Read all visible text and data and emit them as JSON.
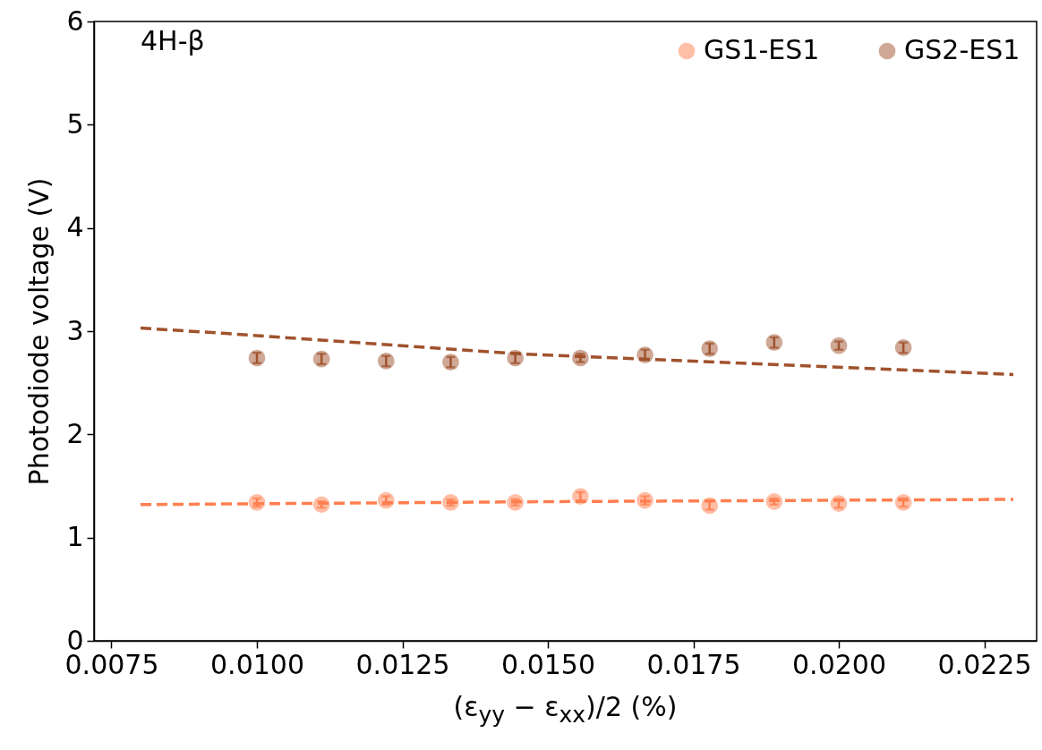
{
  "chart_data": {
    "type": "scatter",
    "xlabel": "(ε$_{yy}$ − ε$_{xx}$)/2 (%)",
    "ylabel": "Photodiode voltage (V)",
    "annotations": [
      "4H-β"
    ],
    "xlim": [
      0.0072,
      0.0234
    ],
    "xticks": [
      0.0075,
      {
        "value": 0.01,
        "label": "0.0100"
      },
      0.0125,
      {
        "value": 0.015,
        "label": "0.0150"
      },
      0.0175,
      {
        "value": 0.02,
        "label": "0.0200"
      },
      0.0225
    ],
    "ylim": [
      0,
      6
    ],
    "yticks": [
      0,
      1,
      2,
      3,
      4,
      5,
      6
    ],
    "grid": false,
    "legend": "top right",
    "series": [
      {
        "name": "GS1-ES1",
        "marker": "circle",
        "color": "#ff7f50",
        "x": [
          0.01,
          0.01111,
          0.01222,
          0.01333,
          0.01444,
          0.01556,
          0.01667,
          0.01778,
          0.01889,
          0.02,
          0.02111
        ],
        "values": [
          1.34,
          1.32,
          1.36,
          1.34,
          1.34,
          1.4,
          1.36,
          1.31,
          1.35,
          1.33,
          1.34
        ],
        "errors": [
          0.04,
          0.03,
          0.04,
          0.03,
          0.03,
          0.04,
          0.04,
          0.04,
          0.03,
          0.04,
          0.04
        ]
      },
      {
        "name": "GS2-ES1",
        "marker": "circle",
        "color": "#a0522d",
        "x": [
          0.01,
          0.01111,
          0.01222,
          0.01333,
          0.01444,
          0.01556,
          0.01667,
          0.01778,
          0.01889,
          0.02,
          0.02111
        ],
        "values": [
          2.74,
          2.73,
          2.71,
          2.7,
          2.74,
          2.74,
          2.77,
          2.83,
          2.89,
          2.86,
          2.84
        ],
        "errors": [
          0.05,
          0.05,
          0.05,
          0.05,
          0.05,
          0.04,
          0.05,
          0.05,
          0.05,
          0.04,
          0.05
        ]
      },
      {
        "type": "line",
        "color": "#ff7f50",
        "line_style": "dashed",
        "x": [
          0.008,
          0.0155,
          0.023
        ],
        "values": [
          1.32,
          1.35,
          1.37
        ]
      },
      {
        "type": "line",
        "color": "#a0522d",
        "line_style": "dashed",
        "x": [
          0.008,
          0.0094,
          0.0145,
          0.023
        ],
        "values": [
          3.03,
          2.98,
          2.78,
          2.58
        ]
      }
    ]
  }
}
